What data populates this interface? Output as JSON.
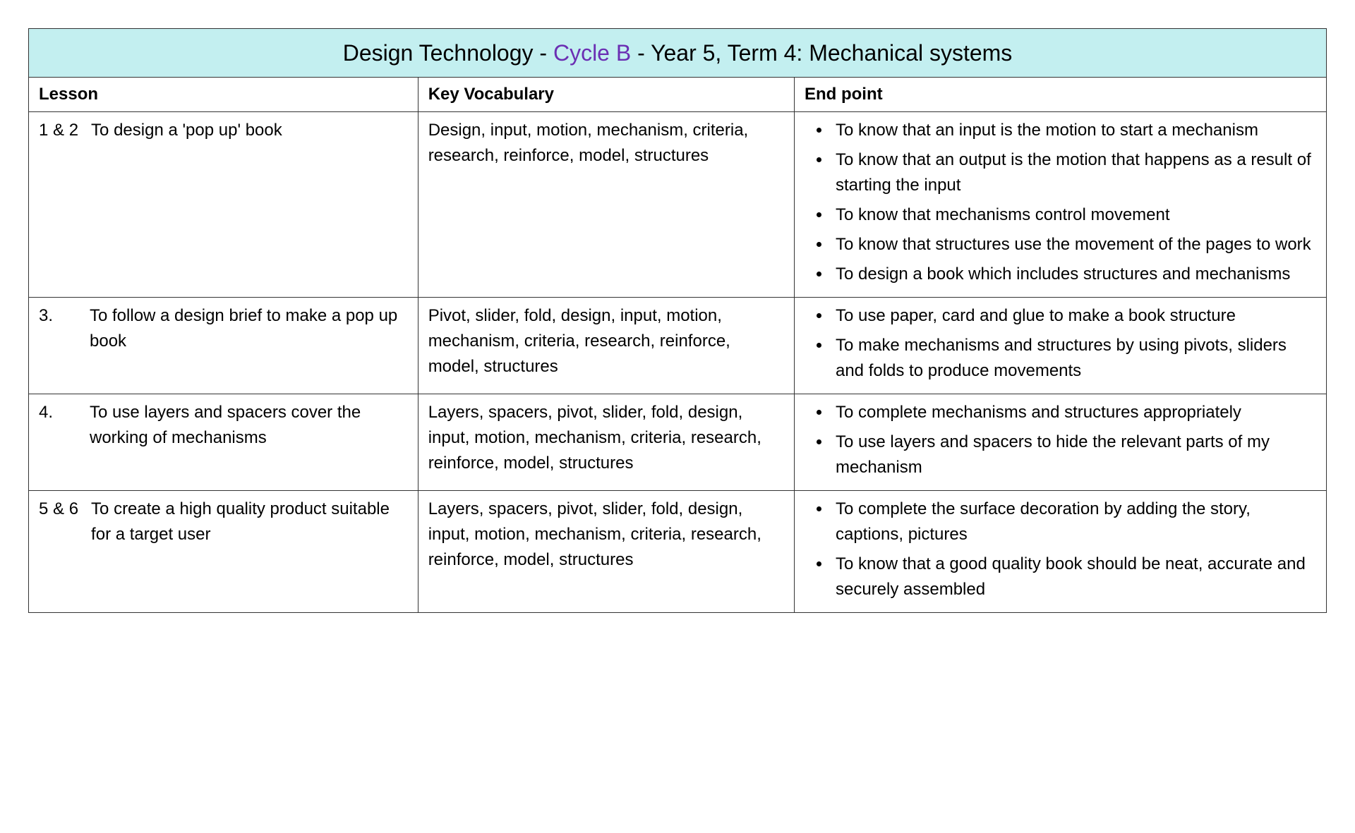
{
  "table": {
    "title_prefix": "Design Technology - ",
    "title_cycle": "Cycle B",
    "title_suffix": " - Year 5, Term 4: Mechanical systems",
    "title_bg": "#c3eff0",
    "cycle_color": "#6b2fb3",
    "border_color": "#333333",
    "text_color": "#000000",
    "columns": [
      "Lesson",
      "Key Vocabulary",
      "End point"
    ],
    "col_widths_pct": [
      30,
      29,
      41
    ],
    "rows": [
      {
        "lesson_num": "1 & 2",
        "lesson_title": "To design a 'pop up' book",
        "vocab": "Design, input, motion, mechanism, criteria, research, reinforce, model, structures",
        "endpoints": [
          "To know that an input is the motion to start a mechanism",
          "To know that an output is the motion that happens as a result of starting the input",
          "To know that mechanisms control movement",
          "To know that structures use the movement of the pages to work",
          "To design a book which includes structures and mechanisms"
        ]
      },
      {
        "lesson_num": "3.",
        "lesson_title": "To follow a design brief to make a pop up book",
        "vocab": "Pivot, slider, fold, design, input, motion, mechanism, criteria, research, reinforce, model, structures",
        "endpoints": [
          "To use paper, card and glue to make a book structure",
          "To make mechanisms and structures by using pivots, sliders and folds to produce movements"
        ]
      },
      {
        "lesson_num": "4.",
        "lesson_title": "To use layers and spacers cover the working of mechanisms",
        "vocab": "Layers, spacers, pivot, slider, fold, design, input, motion, mechanism, criteria, research, reinforce, model, structures",
        "endpoints": [
          "To complete mechanisms and structures appropriately",
          "To use layers and spacers to hide the relevant parts of my mechanism"
        ]
      },
      {
        "lesson_num": "5 & 6",
        "lesson_title": "To create a high quality product suitable for a target user",
        "vocab": "Layers, spacers, pivot, slider, fold, design, input, motion, mechanism, criteria, research, reinforce, model, structures",
        "endpoints": [
          "To complete the surface decoration by adding the story, captions, pictures",
          "To know that a good quality book should be neat, accurate and securely assembled"
        ]
      }
    ]
  }
}
